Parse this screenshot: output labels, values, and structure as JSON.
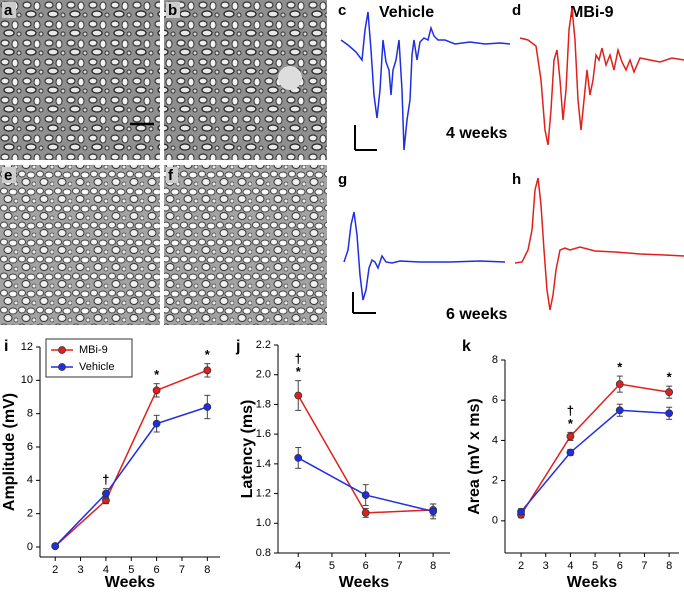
{
  "panels": {
    "letters": [
      "a",
      "b",
      "c",
      "d",
      "e",
      "f",
      "g",
      "h"
    ],
    "trace_labels": [
      "Vehicle",
      "MBi-9"
    ],
    "time_labels": [
      "4 weeks",
      "6 weeks"
    ]
  },
  "chart_data": [
    {
      "type": "line",
      "letter": "i",
      "xlabel": "Weeks",
      "ylabel": "Amplitude (mV)",
      "x": [
        2,
        4,
        6,
        8
      ],
      "xlim": [
        1.4,
        8.5
      ],
      "xticks": [
        2,
        3,
        4,
        5,
        6,
        7,
        8
      ],
      "ylim": [
        -0.6,
        12
      ],
      "yticks": [
        0,
        2,
        4,
        6,
        8,
        10,
        12
      ],
      "legend": "upper left",
      "series": [
        {
          "name": "MBi-9",
          "color": "#e0201c",
          "values": [
            0.05,
            2.8,
            9.4,
            10.6
          ],
          "errors": [
            0.05,
            0.2,
            0.4,
            0.4
          ]
        },
        {
          "name": "Vehicle",
          "color": "#1f2ee0",
          "values": [
            0.05,
            3.2,
            7.4,
            8.4
          ],
          "errors": [
            0.05,
            0.3,
            0.5,
            0.7
          ]
        }
      ],
      "annotations": [
        {
          "x": 4,
          "text": "†"
        },
        {
          "x": 6,
          "text": "*"
        },
        {
          "x": 8,
          "text": "*"
        }
      ]
    },
    {
      "type": "line",
      "letter": "j",
      "xlabel": "Weeks",
      "ylabel": "Latency (ms)",
      "x": [
        4,
        6,
        8
      ],
      "xlim": [
        3.4,
        8.5
      ],
      "xticks": [
        4,
        5,
        6,
        7,
        8
      ],
      "ylim": [
        0.8,
        2.2
      ],
      "yticks": [
        0.8,
        {
          "value": 1,
          "label": "1.0"
        },
        1.2,
        1.4,
        1.6,
        1.8,
        {
          "value": 2,
          "label": "2.0"
        },
        2.2
      ],
      "series": [
        {
          "name": "MBi-9",
          "color": "#e0201c",
          "values": [
            1.86,
            1.07,
            1.09
          ],
          "errors": [
            0.1,
            0.03,
            0.04
          ]
        },
        {
          "name": "Vehicle",
          "color": "#1f2ee0",
          "values": [
            1.44,
            1.19,
            1.08
          ],
          "errors": [
            0.07,
            0.07,
            0.05
          ]
        }
      ],
      "annotations": [
        {
          "x": 4,
          "text": "*"
        },
        {
          "x": 4,
          "text": "†"
        }
      ]
    },
    {
      "type": "line",
      "letter": "k",
      "xlabel": "Weeks",
      "ylabel": "Area (mV x ms)",
      "x": [
        2,
        4,
        6,
        8
      ],
      "xlim": [
        1.35,
        8.4
      ],
      "xticks": [
        2,
        3,
        4,
        5,
        6,
        7,
        8
      ],
      "ylim": [
        -1.6,
        8
      ],
      "yticks": [
        0,
        2,
        4,
        6,
        8
      ],
      "series": [
        {
          "name": "MBi-9",
          "color": "#e0201c",
          "values": [
            0.3,
            4.2,
            6.8,
            6.4
          ],
          "errors": [
            0.15,
            0.2,
            0.4,
            0.3
          ]
        },
        {
          "name": "Vehicle",
          "color": "#1f2ee0",
          "values": [
            0.45,
            3.4,
            5.5,
            5.35
          ],
          "errors": [
            0.15,
            0.15,
            0.3,
            0.3
          ]
        }
      ],
      "annotations": [
        {
          "x": 4,
          "text": "*"
        },
        {
          "x": 4,
          "text": "†"
        },
        {
          "x": 6,
          "text": "*"
        },
        {
          "x": 8,
          "text": "*"
        }
      ]
    }
  ]
}
